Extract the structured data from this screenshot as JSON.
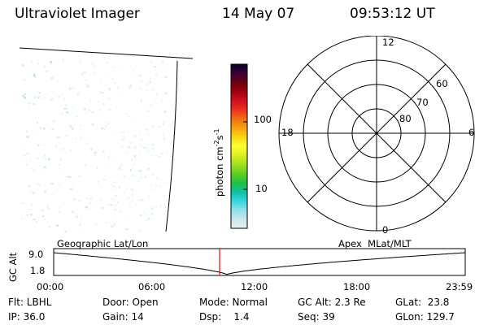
{
  "header": {
    "instrument": "Ultraviolet Imager",
    "date": "14 May 07",
    "time": "09:53:12 UT"
  },
  "colorbar": {
    "unit": "photon cm-2s-1",
    "ticks": [
      "100",
      "10"
    ],
    "colors": [
      "#0a0020",
      "#3a003a",
      "#6a0010",
      "#a00010",
      "#d01020",
      "#ee3020",
      "#f07010",
      "#f8a010",
      "#f8d810",
      "#ffff30",
      "#d8f020",
      "#a0e020",
      "#60d020",
      "#20c040",
      "#10c0a0",
      "#30d8e0",
      "#90e0e8",
      "#c8e8ec",
      "#e8eef0"
    ]
  },
  "polar": {
    "mlt_labels": [
      "12",
      "18",
      "6",
      "0"
    ],
    "lat_labels": [
      "60",
      "70",
      "80"
    ]
  },
  "strip": {
    "ylabel": "GC Alt",
    "y_ticks": [
      "9.0",
      "1.8"
    ],
    "left_label": "Geographic Lat/Lon",
    "right_label": "Apex  MLat/MLT",
    "time_ticks": [
      "00:00",
      "06:00",
      "12:00",
      "18:00",
      "23:59"
    ],
    "orbit_line_color": "#000000",
    "marker_color": "#ff0000"
  },
  "status": {
    "flt": "Flt: LBHL",
    "ip": "IP: 36.0",
    "door": "Door: Open",
    "gain": "Gain: 14",
    "mode": "Mode: Normal",
    "dsp": "Dsp:    1.4",
    "gcalt": "GC Alt: 2.3 Re",
    "seq": "Seq: 39",
    "glat": "GLat:  23.8",
    "glon": "GLon: 129.7"
  }
}
